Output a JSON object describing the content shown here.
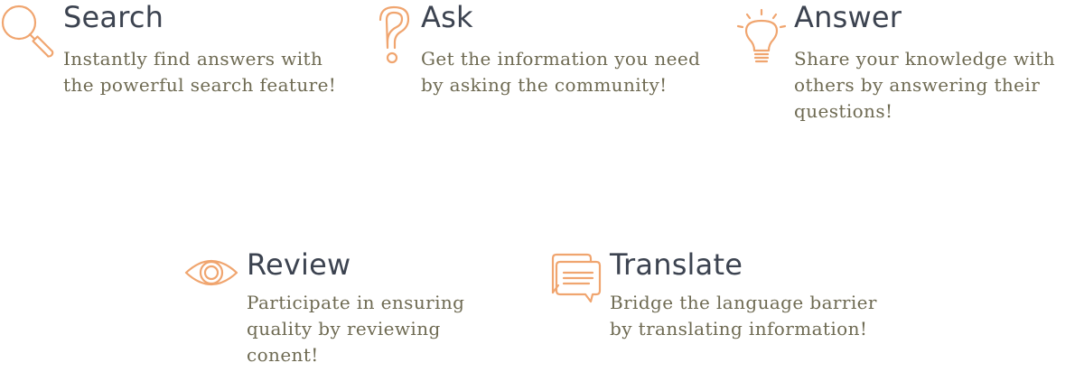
{
  "features": {
    "search": {
      "icon": "magnifier-icon",
      "title": "Search",
      "description": "Instantly find answers with the powerful search feature!"
    },
    "ask": {
      "icon": "question-mark-icon",
      "title": "Ask",
      "description": "Get the information you need by asking the community!"
    },
    "answer": {
      "icon": "lightbulb-icon",
      "title": "Answer",
      "description": "Share your knowledge with others by answering their questions!"
    },
    "review": {
      "icon": "eye-icon",
      "title": "Review",
      "description": "Participate in ensuring quality by reviewing conent!"
    },
    "translate": {
      "icon": "chat-bubbles-icon",
      "title": "Translate",
      "description": "Bridge the language barrier by translating information!"
    }
  },
  "colors": {
    "icon": "#f0a56f",
    "title": "#3c4350",
    "description": "#6e6a52",
    "background": "#ffffff"
  }
}
